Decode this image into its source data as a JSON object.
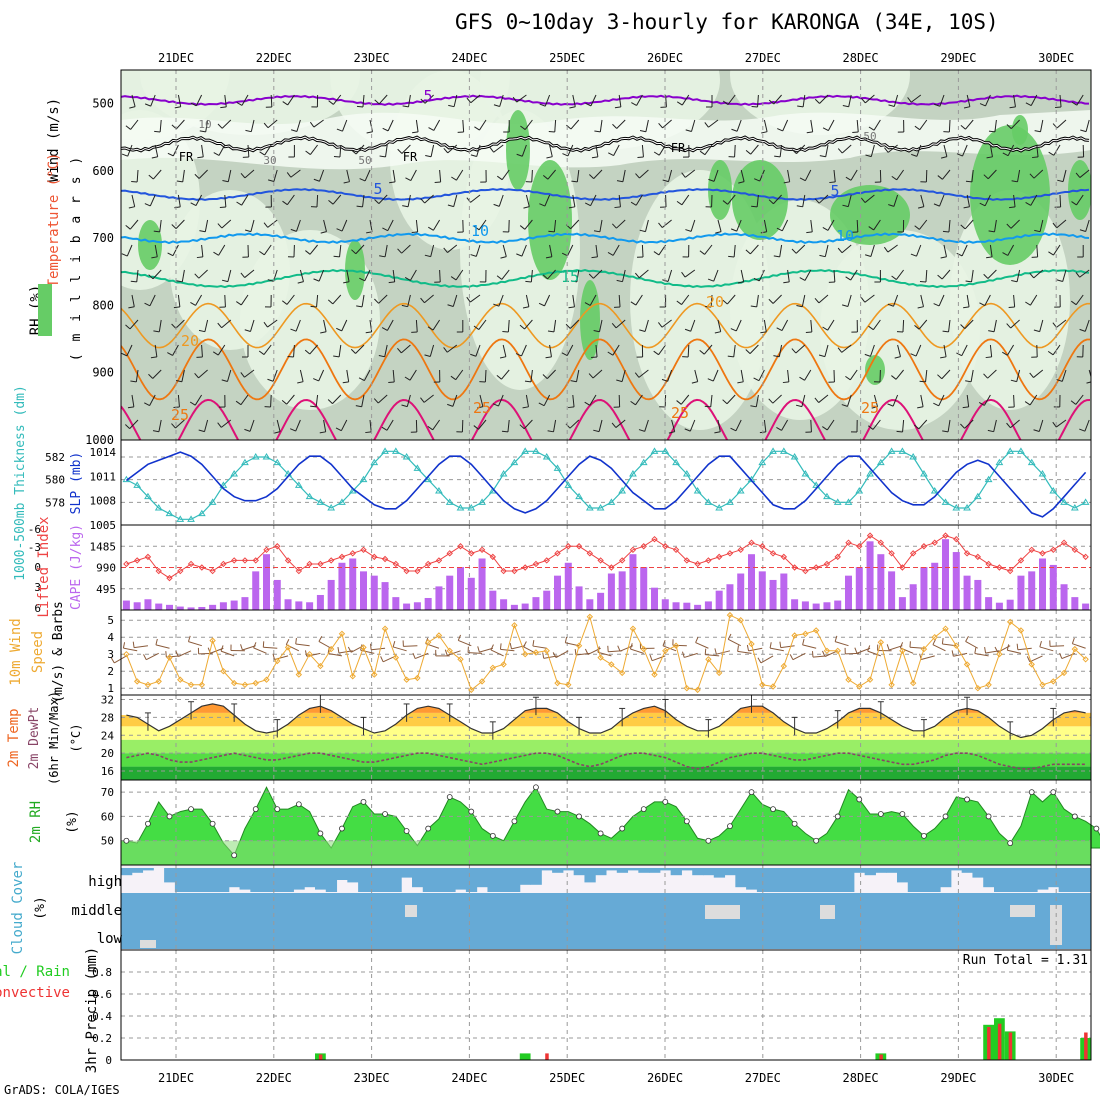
{
  "title": "GFS 0~10day 3-hourly for KARONGA (34E, 10S)",
  "credit": "GrADS: COLA/IGES",
  "dates": [
    "21DEC",
    "22DEC",
    "23DEC",
    "24DEC",
    "25DEC",
    "26DEC",
    "27DEC",
    "28DEC",
    "29DEC",
    "30DEC"
  ],
  "colors": {
    "grid": "#999999",
    "rh_light": "#e8f4e4",
    "rh_mid": "#c4d3c2",
    "rh_green": "#66cc66",
    "wind500": "#8800cc",
    "t5": "#2255dd",
    "t10": "#1199ee",
    "t15": "#11bb88",
    "t20": "#ee9922",
    "t25": "#ee7711",
    "t30": "#dd1177",
    "thick": "#33bbbb",
    "slp": "#1133cc",
    "cape": "#bb66ee",
    "li": "#ee4444",
    "wind10": "#eeaa33",
    "temp": "#ee7722",
    "rh2m": "#44dd44",
    "cloud": "#66aad6",
    "precip_total": "#22cc22",
    "precip_conv": "#ee3333"
  },
  "chart_data": [
    {
      "panel": "upper_air",
      "type": "heatmap",
      "ylabel_parts": [
        "Wind (m/s)",
        "Temperature (°C)",
        "RH (%)",
        "( m i l l i b a r s )"
      ],
      "yticks": [
        500,
        600,
        700,
        800,
        900,
        1000
      ],
      "ylim": [
        450,
        1000
      ],
      "contour_labels": [
        "5",
        "10",
        "15",
        "20",
        "25",
        "FR",
        "5",
        "10",
        "30",
        "50"
      ],
      "series": [
        {
          "name": "-5C",
          "level_mb": 495
        },
        {
          "name": "FR",
          "level_mb": 560
        },
        {
          "name": "5C",
          "level_mb": 635
        },
        {
          "name": "10C",
          "level_mb": 700
        },
        {
          "name": "15C",
          "level_mb": 760
        },
        {
          "name": "20C",
          "level_mb": 825
        },
        {
          "name": "25C",
          "level_mb": 890
        }
      ]
    },
    {
      "panel": "thickness_slp",
      "type": "line",
      "ylabel_left": "1000-500mb Thickness (dm)",
      "ylabel_right": "SLP (mb)",
      "yticks_left": [
        578,
        580,
        582
      ],
      "yticks_right": [
        1005,
        1008,
        1011,
        1014
      ],
      "series": [
        {
          "name": "Thickness",
          "values": [
            580,
            579.5,
            578.5,
            577.5,
            577,
            576.5,
            576.5,
            577,
            578,
            579.5,
            580.5,
            581.5,
            582,
            582,
            581.5,
            580.5,
            579.5,
            578.5,
            578,
            577.5,
            578,
            579,
            580,
            581.5,
            582.5,
            582.5,
            582,
            581,
            580,
            579,
            578,
            577.5,
            577.5,
            578,
            579,
            580.5,
            581.5,
            582.5,
            582.5,
            582,
            581,
            579.5,
            578.5,
            577.5,
            577.5,
            578,
            579,
            580.5,
            581.5,
            582.5,
            582.5,
            581.5,
            580.5,
            579,
            578,
            577.5,
            578,
            579,
            580,
            581.5,
            582.5,
            582.5,
            582,
            580.5,
            579.5,
            578.5,
            578,
            578,
            579,
            580.5,
            581.5,
            582.5,
            582.5,
            582,
            580.5,
            579,
            578,
            577.5,
            577.5,
            578.5,
            580,
            581.5,
            582.5,
            582.5,
            581.5,
            580.5,
            579,
            578,
            577.5,
            578
          ]
        },
        {
          "name": "SLP",
          "values": [
            1010.5,
            1011.5,
            1012.5,
            1013,
            1013.5,
            1014,
            1013.5,
            1012.5,
            1011,
            1009.5,
            1008.5,
            1008,
            1008,
            1008.5,
            1009.5,
            1011,
            1012.5,
            1013.5,
            1013.5,
            1012.5,
            1011,
            1009.5,
            1008.5,
            1007.5,
            1007,
            1007,
            1008,
            1009.5,
            1011,
            1012.5,
            1013.5,
            1013.5,
            1012.5,
            1011,
            1009.5,
            1008,
            1007,
            1006.5,
            1007,
            1008,
            1009.5,
            1011,
            1012.5,
            1013.5,
            1013,
            1012,
            1010.5,
            1009,
            1008,
            1007,
            1007,
            1008,
            1009.5,
            1011,
            1012.5,
            1013.5,
            1013.5,
            1012,
            1010.5,
            1009,
            1007.5,
            1007,
            1007,
            1008,
            1009.5,
            1011,
            1012.5,
            1013.5,
            1013.5,
            1012,
            1010.5,
            1009,
            1008,
            1007.5,
            1007.5,
            1008.5,
            1010,
            1011.5,
            1012.5,
            1013,
            1012.5,
            1011,
            1009.5,
            1008,
            1006.5,
            1006,
            1007,
            1008.5,
            1010,
            1011.5
          ]
        }
      ]
    },
    {
      "panel": "cape_li",
      "type": "bar",
      "ylabel_left": "Lifted Index",
      "ylabel_right": "CAPE (J/kg)",
      "yticks_left": [
        "-6",
        "-3",
        "0",
        "3",
        "6"
      ],
      "yticks_right": [
        "495",
        "990",
        "1485"
      ],
      "series": [
        {
          "name": "CAPE",
          "values": [
            220,
            180,
            250,
            150,
            120,
            80,
            60,
            70,
            120,
            180,
            220,
            300,
            900,
            1300,
            700,
            250,
            200,
            180,
            350,
            700,
            1100,
            1200,
            900,
            800,
            650,
            300,
            150,
            180,
            280,
            550,
            800,
            1000,
            750,
            1200,
            450,
            250,
            120,
            150,
            300,
            450,
            800,
            1100,
            550,
            250,
            400,
            850,
            900,
            1300,
            1000,
            520,
            250,
            180,
            170,
            120,
            200,
            450,
            600,
            850,
            1300,
            900,
            700,
            850,
            250,
            200,
            150,
            180,
            220,
            800,
            1000,
            1600,
            1300,
            900,
            300,
            600,
            1000,
            1100,
            1650,
            1350,
            800,
            700,
            300,
            170,
            240,
            800,
            900,
            1200,
            1050,
            600,
            300,
            150
          ]
        },
        {
          "name": "Lifted Index",
          "values": [
            -0.5,
            -1,
            -1.5,
            0.5,
            1.5,
            0.5,
            -0.5,
            0,
            0.5,
            -0.5,
            -1,
            -1,
            -1,
            -2.5,
            -3,
            -1,
            0.5,
            -0.5,
            -0.5,
            -1,
            -1.5,
            -2,
            -2.5,
            -1.5,
            -1.2,
            -0.5,
            0.5,
            0.5,
            -0.5,
            -1,
            -2,
            -3,
            -2,
            -2.5,
            -1.5,
            0.5,
            0.5,
            0,
            -0.5,
            -1,
            -2,
            -3,
            -3,
            -2,
            -1,
            0,
            -1,
            -2.5,
            -3,
            -4,
            -3,
            -2.5,
            -1,
            -0.5,
            -1,
            -1.5,
            -2,
            -2.5,
            -3.5,
            -3,
            -2,
            -1.5,
            0,
            0.5,
            0,
            -0.5,
            -1.5,
            -3.5,
            -3,
            -4.5,
            -3.5,
            -2,
            0,
            -2,
            -3,
            -3.5,
            -4.5,
            -4,
            -2,
            -1.5,
            -0.5,
            0,
            0.5,
            -1,
            -2.5,
            -2,
            -2.5,
            -3.5,
            -2.5,
            -1.5
          ]
        }
      ]
    },
    {
      "panel": "wind10m",
      "type": "line",
      "ylabel": "10m Wind Speed (m/s) & Barbs",
      "yticks": [
        1,
        2,
        3,
        4,
        5
      ],
      "ylim": [
        0.6,
        5.6
      ],
      "series": [
        {
          "name": "10m wind speed",
          "values": [
            3,
            1.4,
            1.2,
            1.4,
            2.8,
            1.5,
            1.2,
            1.2,
            3.8,
            2,
            1.3,
            1.2,
            1.3,
            1.5,
            2.6,
            3.4,
            1.8,
            3,
            2.3,
            3.3,
            4.2,
            1.7,
            3.4,
            1.8,
            4.5,
            2.8,
            1.5,
            1.6,
            3.7,
            4.1,
            3.2,
            2.7,
            0.9,
            1.4,
            2.2,
            2.4,
            4.7,
            3,
            3.1,
            3.2,
            1.3,
            1.2,
            3.5,
            5.2,
            2.8,
            2.4,
            1.9,
            4.5,
            3.3,
            1.8,
            3.2,
            3.5,
            1,
            0.9,
            2.7,
            1.9,
            5.3,
            5,
            3.6,
            1.2,
            1.1,
            2.3,
            4.1,
            4.2,
            4.4,
            3.2,
            3.2,
            1.5,
            1.1,
            1.5,
            3.7,
            1.2,
            3.2,
            1.3,
            3.3,
            4,
            4.5,
            3.5,
            2.4,
            1,
            1.2,
            3,
            4.9,
            4.4,
            2.4,
            1.2,
            1.4,
            1.9,
            3.3,
            2.7
          ]
        }
      ]
    },
    {
      "panel": "temp2m",
      "type": "area",
      "ylabel_parts": [
        "2m Temp",
        "2m DewPt",
        "(6hr Min/Max)",
        "(°C)"
      ],
      "yticks": [
        16,
        20,
        24,
        28,
        32
      ],
      "ylim": [
        14,
        33
      ],
      "series": [
        {
          "name": "2m Temp",
          "values": [
            28.5,
            28,
            26.5,
            25,
            26,
            27.5,
            29,
            30.5,
            31,
            30.5,
            28.5,
            26.5,
            25,
            24.5,
            25,
            26.5,
            28.5,
            30,
            30.5,
            29.5,
            28,
            26.5,
            25.5,
            24.5,
            25,
            26.5,
            28.5,
            30,
            30.5,
            30,
            28.5,
            27,
            25.5,
            24.5,
            24.5,
            25.5,
            27.5,
            29.5,
            30,
            30,
            29,
            27,
            25.5,
            24.5,
            24.5,
            25.5,
            27.5,
            29,
            30,
            30.5,
            29.5,
            27.5,
            26,
            25,
            25,
            26,
            28,
            30,
            30.5,
            30.5,
            29,
            27,
            25.5,
            24.5,
            24.5,
            25.5,
            27,
            29,
            30,
            30,
            29,
            27.5,
            26,
            25,
            25,
            26,
            28,
            29.5,
            30,
            29.5,
            28,
            26,
            24.5,
            23.5,
            24,
            25.5,
            27.5,
            29,
            29.5,
            29
          ]
        },
        {
          "name": "2m DewPt",
          "values": [
            19,
            19.5,
            20,
            19.5,
            18.5,
            18,
            18,
            18.5,
            19,
            19.5,
            20,
            19.5,
            19,
            18.5,
            18.5,
            19,
            19.5,
            20,
            20,
            19.5,
            19,
            18.5,
            18,
            18,
            18.5,
            19,
            19.5,
            20,
            20,
            19.5,
            19,
            18.5,
            18,
            17.5,
            18,
            18.5,
            19,
            19.5,
            20,
            20,
            19.5,
            18.5,
            17.5,
            17,
            17.5,
            18.5,
            19.5,
            20,
            20,
            19.5,
            19,
            18,
            17,
            16.5,
            17,
            18,
            19,
            19.5,
            20,
            20,
            19.5,
            19,
            18.5,
            18.5,
            19,
            19.5,
            20,
            20,
            19.5,
            19,
            18.5,
            18,
            17.5,
            17.5,
            18,
            18.5,
            19.5,
            20,
            20,
            19.5,
            18.5,
            17.5,
            17,
            16.5,
            16.5,
            17,
            17.5,
            17.5,
            17.5,
            17.5
          ]
        }
      ]
    },
    {
      "panel": "rh2m",
      "type": "area",
      "ylabel": "2m RH (%)",
      "yticks": [
        50,
        60,
        70
      ],
      "ylim": [
        40,
        75
      ],
      "series": [
        {
          "name": "2m RH",
          "values": [
            50,
            49,
            57,
            66,
            60,
            62,
            63,
            63,
            57,
            49,
            44,
            55,
            63,
            72,
            63,
            63,
            65,
            62,
            53,
            47,
            55,
            64,
            66,
            61,
            61,
            60,
            54,
            48,
            55,
            59,
            68,
            66,
            62,
            55,
            52,
            50,
            58,
            66,
            72,
            63,
            62,
            62,
            60,
            57,
            53,
            51,
            55,
            60,
            63,
            66,
            66,
            64,
            58,
            51,
            50,
            52,
            56,
            63,
            70,
            65,
            63,
            62,
            57,
            53,
            50,
            53,
            60,
            71,
            67,
            61,
            61,
            62,
            61,
            56,
            52,
            55,
            60,
            68,
            67,
            66,
            60,
            53,
            49,
            56,
            70,
            66,
            70,
            63,
            60,
            58,
            55,
            47
          ]
        }
      ]
    },
    {
      "panel": "cloud",
      "type": "area",
      "ylabel": "Cloud Cover (%)",
      "level_labels": [
        "high",
        "middle",
        "low"
      ]
    },
    {
      "panel": "precip",
      "type": "bar",
      "ylabel_parts": [
        "3hr Precip (mm)",
        "Total / Rain",
        "Convective"
      ],
      "yticks": [
        "0",
        "0.2",
        "0.4",
        "0.6",
        "0.8"
      ],
      "ylim": [
        0,
        1
      ],
      "run_total_label": "Run Total = 1.31",
      "series": [
        {
          "name": "Total",
          "values": [
            0,
            0,
            0,
            0,
            0,
            0,
            0,
            0,
            0,
            0,
            0,
            0,
            0,
            0,
            0,
            0,
            0,
            0,
            0.06,
            0,
            0,
            0,
            0,
            0,
            0,
            0,
            0,
            0,
            0,
            0,
            0,
            0,
            0,
            0,
            0,
            0,
            0,
            0.06,
            0,
            0,
            0,
            0,
            0,
            0,
            0,
            0,
            0,
            0,
            0,
            0,
            0,
            0,
            0,
            0,
            0,
            0,
            0,
            0,
            0,
            0,
            0,
            0,
            0,
            0,
            0,
            0,
            0,
            0,
            0,
            0,
            0.06,
            0,
            0,
            0,
            0,
            0,
            0,
            0,
            0,
            0,
            0.32,
            0.38,
            0.26,
            0,
            0,
            0,
            0,
            0,
            0,
            0.2
          ]
        },
        {
          "name": "Convective",
          "values": [
            0,
            0,
            0,
            0,
            0,
            0,
            0,
            0,
            0,
            0,
            0,
            0,
            0,
            0,
            0,
            0,
            0,
            0,
            0.05,
            0,
            0,
            0,
            0,
            0,
            0,
            0,
            0,
            0,
            0,
            0,
            0,
            0,
            0,
            0,
            0,
            0,
            0,
            0,
            0,
            0.06,
            0,
            0,
            0,
            0,
            0,
            0,
            0,
            0,
            0,
            0,
            0,
            0,
            0,
            0,
            0,
            0,
            0,
            0,
            0,
            0,
            0,
            0,
            0,
            0,
            0,
            0,
            0,
            0,
            0,
            0,
            0.05,
            0,
            0,
            0,
            0,
            0,
            0,
            0,
            0,
            0,
            0.3,
            0.33,
            0.25,
            0,
            0,
            0,
            0,
            0,
            0,
            0.25
          ]
        }
      ]
    }
  ]
}
